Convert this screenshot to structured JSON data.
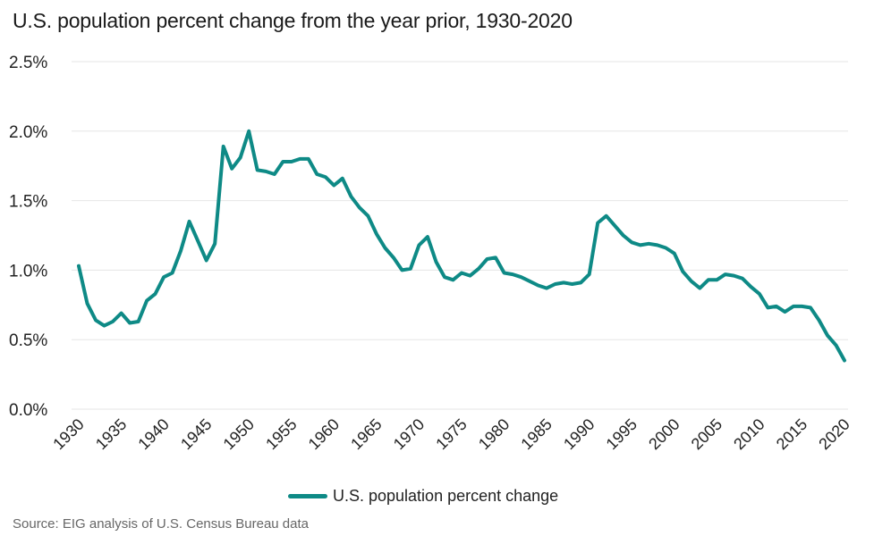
{
  "chart_data": {
    "type": "line",
    "title": "U.S. population percent change from the year prior, 1930-2020",
    "source": "Source: EIG analysis of U.S. Census Bureau data",
    "xlabel": "",
    "ylabel": "",
    "ylim": [
      0,
      2.5
    ],
    "xlim": [
      1930,
      2020
    ],
    "yticks": [
      0,
      0.5,
      1.0,
      1.5,
      2.0,
      2.5
    ],
    "ytick_labels": [
      "0.0%",
      "0.5%",
      "1.0%",
      "1.5%",
      "2.0%",
      "2.5%"
    ],
    "xticks": [
      1930,
      1935,
      1940,
      1945,
      1950,
      1955,
      1960,
      1965,
      1970,
      1975,
      1980,
      1985,
      1990,
      1995,
      2000,
      2005,
      2010,
      2015,
      2020
    ],
    "xtick_labels": [
      "1930",
      "1935",
      "1940",
      "1945",
      "1950",
      "1955",
      "1960",
      "1965",
      "1970",
      "1975",
      "1980",
      "1985",
      "1990",
      "1995",
      "2000",
      "2005",
      "2010",
      "2015",
      "2020"
    ],
    "grid": true,
    "legend_position": "bottom",
    "color": "#0e8a86",
    "series": [
      {
        "name": "U.S. population percent change",
        "x": [
          1930,
          1931,
          1932,
          1933,
          1934,
          1935,
          1936,
          1937,
          1938,
          1939,
          1940,
          1941,
          1942,
          1943,
          1944,
          1945,
          1946,
          1947,
          1948,
          1949,
          1950,
          1951,
          1952,
          1953,
          1954,
          1955,
          1956,
          1957,
          1958,
          1959,
          1960,
          1961,
          1962,
          1963,
          1964,
          1965,
          1966,
          1967,
          1968,
          1969,
          1970,
          1971,
          1972,
          1973,
          1974,
          1975,
          1976,
          1977,
          1978,
          1979,
          1980,
          1981,
          1982,
          1983,
          1984,
          1985,
          1986,
          1987,
          1988,
          1989,
          1990,
          1991,
          1992,
          1993,
          1994,
          1995,
          1996,
          1997,
          1998,
          1999,
          2000,
          2001,
          2002,
          2003,
          2004,
          2005,
          2006,
          2007,
          2008,
          2009,
          2010,
          2011,
          2012,
          2013,
          2014,
          2015,
          2016,
          2017,
          2018,
          2019,
          2020
        ],
        "y": [
          1.03,
          0.76,
          0.64,
          0.6,
          0.63,
          0.69,
          0.62,
          0.63,
          0.78,
          0.83,
          0.95,
          0.98,
          1.14,
          1.35,
          1.21,
          1.07,
          1.19,
          1.89,
          1.73,
          1.81,
          2.0,
          1.72,
          1.71,
          1.69,
          1.78,
          1.78,
          1.8,
          1.8,
          1.69,
          1.67,
          1.61,
          1.66,
          1.53,
          1.45,
          1.39,
          1.26,
          1.16,
          1.09,
          1.0,
          1.01,
          1.18,
          1.24,
          1.06,
          0.95,
          0.93,
          0.98,
          0.96,
          1.01,
          1.08,
          1.09,
          0.98,
          0.97,
          0.95,
          0.92,
          0.89,
          0.87,
          0.9,
          0.91,
          0.9,
          0.91,
          0.97,
          1.34,
          1.39,
          1.32,
          1.25,
          1.2,
          1.18,
          1.19,
          1.18,
          1.16,
          1.12,
          0.99,
          0.92,
          0.87,
          0.93,
          0.93,
          0.97,
          0.96,
          0.94,
          0.88,
          0.83,
          0.73,
          0.74,
          0.7,
          0.74,
          0.74,
          0.73,
          0.64,
          0.53,
          0.46,
          0.35
        ]
      }
    ]
  }
}
